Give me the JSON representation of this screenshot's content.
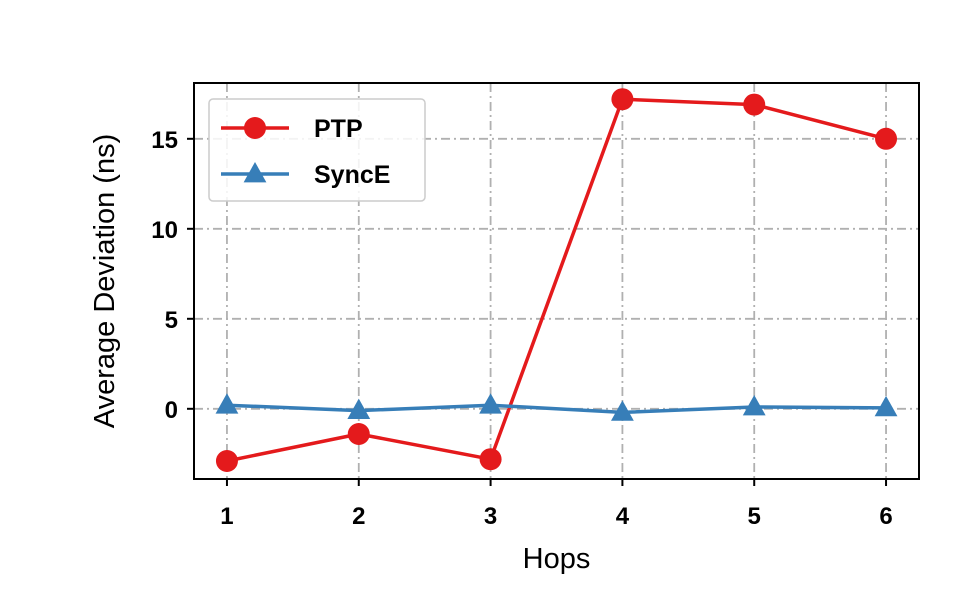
{
  "chart_data": {
    "type": "line",
    "title": "",
    "xlabel": "Hops",
    "ylabel": "Average Deviation (ns)",
    "x": [
      1,
      2,
      3,
      4,
      5,
      6
    ],
    "xticks": [
      "1",
      "2",
      "3",
      "4",
      "5",
      "6"
    ],
    "yticks": [
      "0",
      "5",
      "10",
      "15"
    ],
    "xlim": [
      0.75,
      6.25
    ],
    "ylim": [
      -3.9,
      18.1
    ],
    "grid": true,
    "legend_position": "top-left",
    "series": [
      {
        "name": "PTP",
        "marker": "circle",
        "color": "#e41a1c",
        "values": [
          -2.9,
          -1.4,
          -2.8,
          17.2,
          16.9,
          15.0
        ]
      },
      {
        "name": "SyncE",
        "marker": "triangle",
        "color": "#377eb8",
        "values": [
          0.2,
          -0.1,
          0.2,
          -0.2,
          0.1,
          0.05
        ]
      }
    ]
  }
}
